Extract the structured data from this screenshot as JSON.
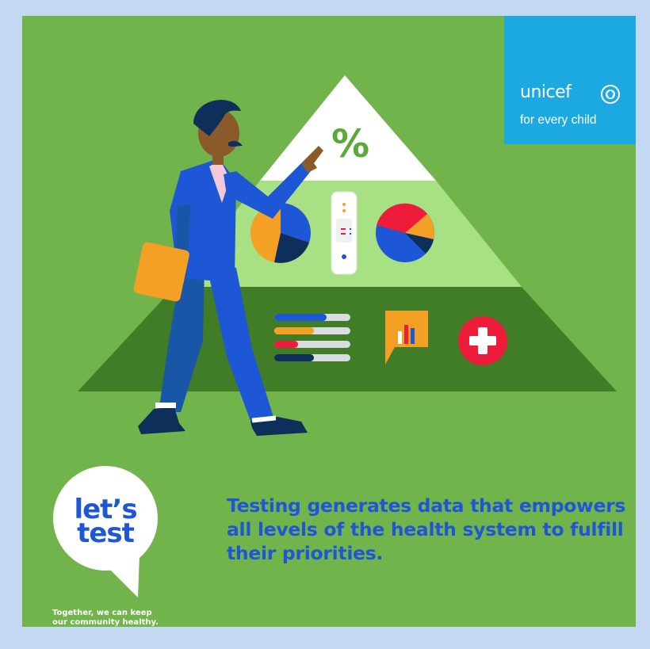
{
  "brand": {
    "name": "unicef",
    "tagline": "for every child"
  },
  "campaign": {
    "logo_line1": "let’s",
    "logo_line2": "test",
    "tagline": "Together, we can keep\nour community healthy."
  },
  "message": "Testing generates data that empowers all levels of the health system to fulfill their priorities.",
  "pyramid": {
    "top_symbol": "%",
    "icons": [
      "pie-chart-icon",
      "rapid-test-icon",
      "pie-chart-icon",
      "progress-bars-icon",
      "bar-chart-speech-icon",
      "plus-cross-icon"
    ]
  },
  "colors": {
    "page_border": "#c5d8f2",
    "background": "#71b44b",
    "pyramid_bottom": "#417d26",
    "pyramid_middle": "#a7e183",
    "pyramid_top": "#ffffff",
    "unicef_blue": "#1ca9e1",
    "text_blue": "#1e57d6",
    "accent_orange": "#f4a024",
    "accent_red": "#ee1c3b",
    "navy": "#0d2f5a"
  }
}
